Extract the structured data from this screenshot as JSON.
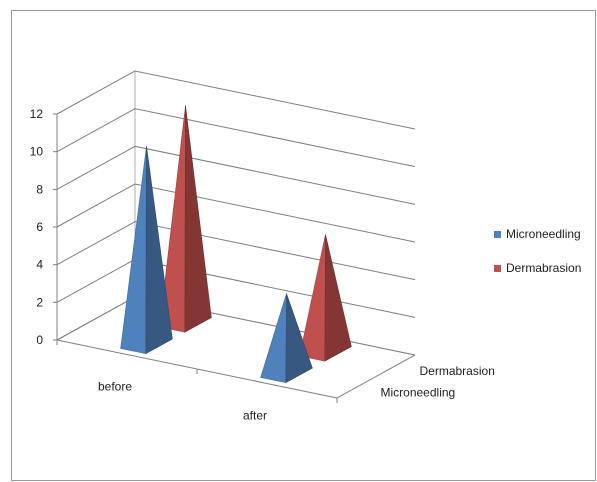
{
  "chart_data": {
    "type": "bar",
    "style": "3d-pyramid",
    "title": "",
    "categories": [
      "before",
      "after"
    ],
    "series": [
      {
        "name": "Microneedling",
        "values": [
          10.5,
          4.2
        ],
        "color": "#4f81bd"
      },
      {
        "name": "Dermabrasion",
        "values": [
          11.5,
          6.2
        ],
        "color": "#c0504d"
      }
    ],
    "ylim": [
      0,
      12
    ],
    "y_ticks": [
      "0",
      "2",
      "4",
      "6",
      "8",
      "10",
      "12"
    ],
    "grid": true,
    "legend_position": "right"
  }
}
